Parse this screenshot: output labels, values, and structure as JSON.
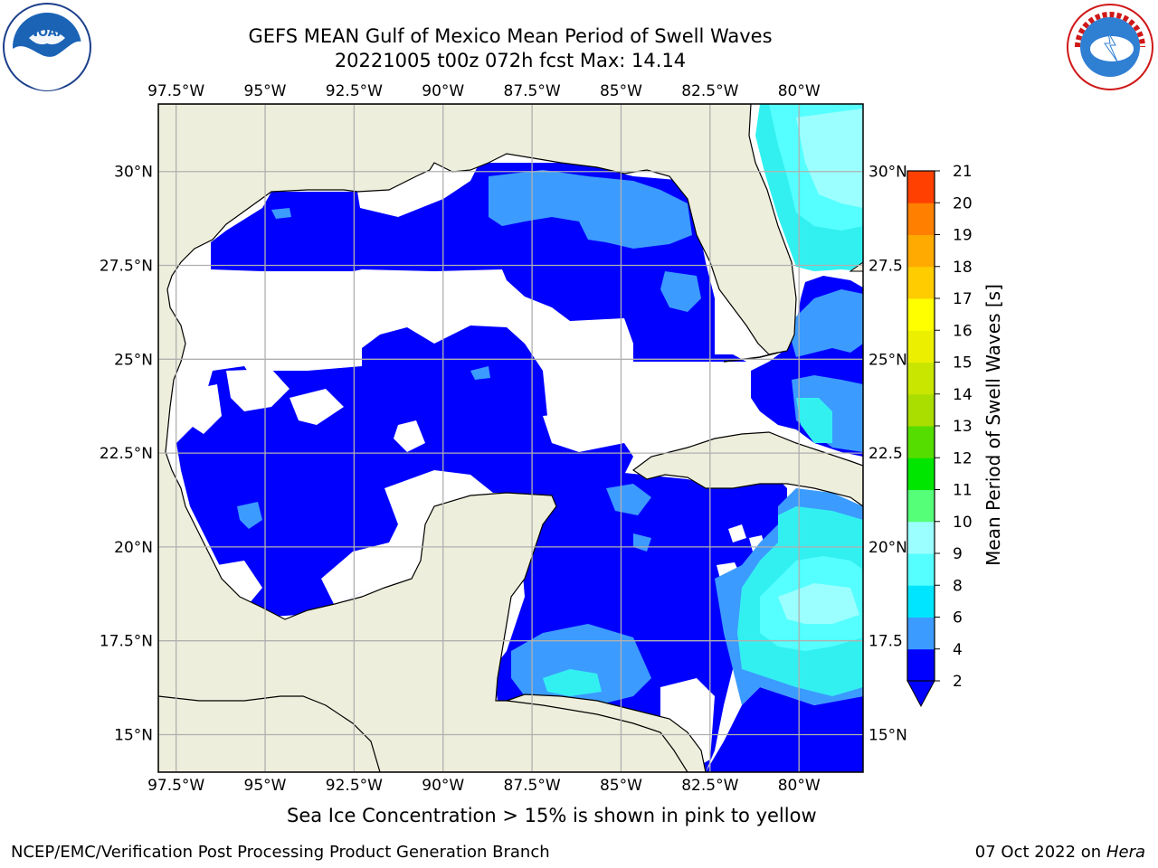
{
  "header": {
    "title_line1": "GEFS MEAN Gulf of Mexico Mean Period of Swell Waves",
    "title_line2": "20221005 t00z 072h fcst   Max: 14.14"
  },
  "logos": {
    "left": {
      "icon": "noaa-logo-icon",
      "text": "NOAA"
    },
    "right": {
      "icon": "nws-logo-icon",
      "text": "NATIONAL WEATHER SERVICE"
    }
  },
  "map": {
    "lon_labels": [
      "97.5°W",
      "95°W",
      "92.5°W",
      "90°W",
      "87.5°W",
      "85°W",
      "82.5°W",
      "80°W"
    ],
    "lon_values": [
      -97.5,
      -95,
      -92.5,
      -90,
      -87.5,
      -85,
      -82.5,
      -80
    ],
    "lat_labels_left": [
      "30°N",
      "27.5°N",
      "25°N",
      "22.5°N",
      "20°N",
      "17.5°N",
      "15°N"
    ],
    "lat_labels_right": [
      "30°N",
      "27.5",
      "25°N",
      "22.5",
      "20°N",
      "17.5",
      "15°N"
    ],
    "lat_values": [
      30,
      27.5,
      25,
      22.5,
      20,
      17.5,
      15
    ],
    "extent": {
      "lon_min": -98,
      "lon_max": -78.2,
      "lat_min": 14,
      "lat_max": 31.8
    },
    "land_color": "#eeeedc",
    "colors": {
      "c2": "#0000ff",
      "c4": "#3c9bff",
      "c6": "#33f0f0",
      "c8": "#55ffff",
      "c9": "#9bffff"
    }
  },
  "colorbar": {
    "label": "Mean Period of Swell Waves [s]",
    "ticks": [
      "2",
      "4",
      "6",
      "8",
      "9",
      "10",
      "11",
      "12",
      "13",
      "14",
      "15",
      "16",
      "17",
      "18",
      "19",
      "20",
      "21"
    ],
    "colors": [
      "#0000ff",
      "#3c9bff",
      "#00e5ff",
      "#55ffff",
      "#9bffff",
      "#55ff78",
      "#00e600",
      "#55dd00",
      "#aadd00",
      "#c8e600",
      "#ecf000",
      "#ffff00",
      "#ffcc00",
      "#ffaa00",
      "#ff8000",
      "#ff4000",
      "#ff0000"
    ]
  },
  "footer": {
    "seaice_note": "Sea Ice Concentration > 15% is shown in pink to yellow",
    "credit": "NCEP/EMC/Verification Post Processing Product Generation Branch",
    "date": "07 Oct 2022 on",
    "host": "Hera"
  }
}
